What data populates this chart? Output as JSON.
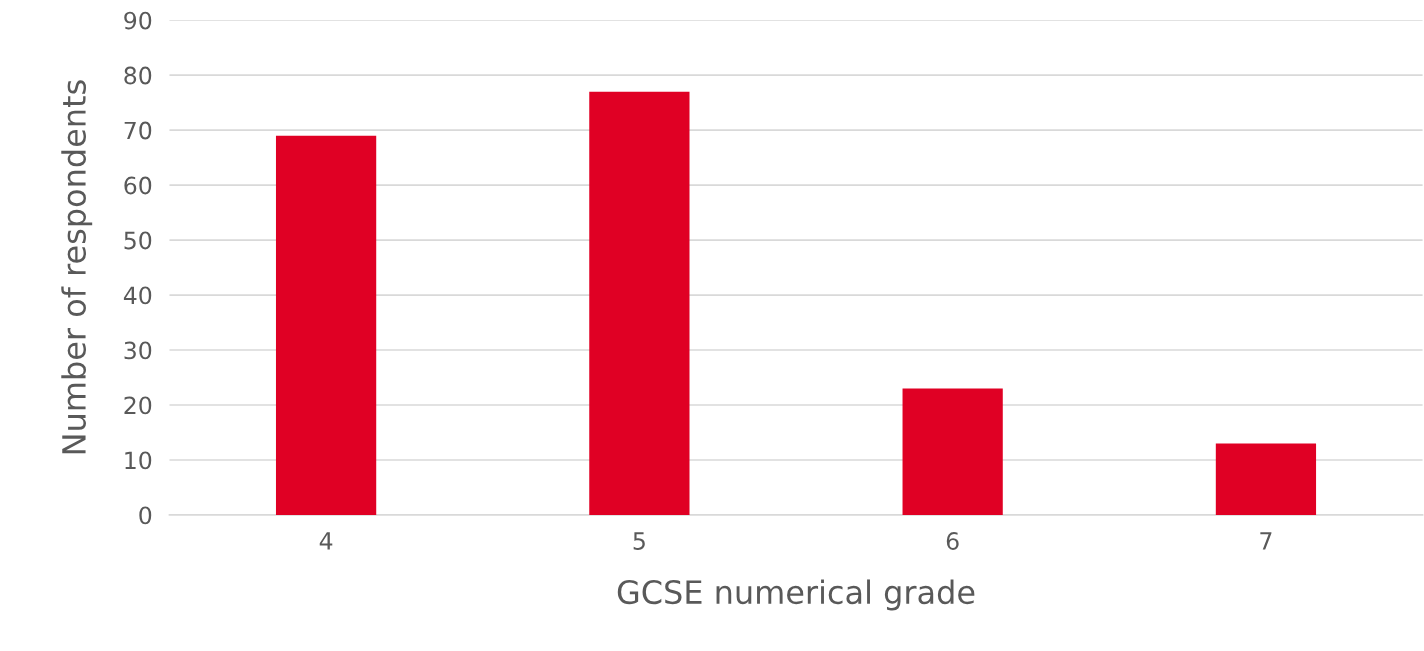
{
  "chart_data": {
    "type": "bar",
    "xlabel": "GCSE numerical grade",
    "ylabel": "Number of respondents",
    "categories": [
      "4",
      "5",
      "6",
      "7"
    ],
    "values": [
      69,
      77,
      23,
      13
    ],
    "color": "#e00024",
    "ylim": [
      0,
      90
    ],
    "yticks": [
      0,
      10,
      20,
      30,
      40,
      50,
      60,
      70,
      80,
      90
    ],
    "grid": "y",
    "legend": false
  }
}
